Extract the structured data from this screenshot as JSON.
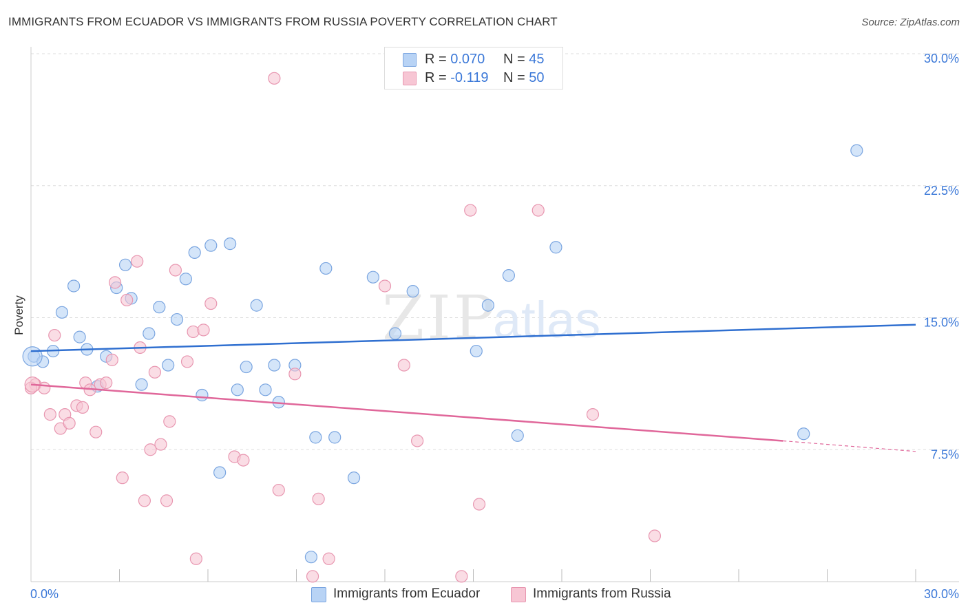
{
  "title": "IMMIGRANTS FROM ECUADOR VS IMMIGRANTS FROM RUSSIA POVERTY CORRELATION CHART",
  "source": "Source: ZipAtlas.com",
  "watermark": {
    "zip": "ZIP",
    "atlas": "atlas"
  },
  "legend_top": [
    {
      "r_label": "R = ",
      "r_value": "0.070",
      "n_label": "N = ",
      "n_value": "45",
      "fill": "#b8d3f5",
      "stroke": "#7aa5e0"
    },
    {
      "r_label": "R = ",
      "r_value": "-0.119",
      "n_label": "N = ",
      "n_value": "50",
      "fill": "#f7c6d4",
      "stroke": "#e896b0"
    }
  ],
  "legend_bottom": [
    {
      "label": "Immigrants from Ecuador",
      "fill": "#b8d3f5",
      "stroke": "#7aa5e0"
    },
    {
      "label": "Immigrants from Russia",
      "fill": "#f7c6d4",
      "stroke": "#e896b0"
    }
  ],
  "colors": {
    "ecuador_line": "#2f6fd0",
    "russia_line": "#e0679a",
    "axis_label": "#3b78d8",
    "grid": "#dddddd"
  },
  "chart_data": {
    "type": "scatter",
    "title": "IMMIGRANTS FROM ECUADOR VS IMMIGRANTS FROM RUSSIA POVERTY CORRELATION CHART",
    "xlabel": "",
    "ylabel": "Poverty",
    "xlim": [
      0,
      30
    ],
    "ylim": [
      0,
      30
    ],
    "x_tick_labels": [
      "0.0%",
      "30.0%"
    ],
    "y_ticks": [
      7.5,
      15.0,
      22.5,
      30.0
    ],
    "y_tick_labels": [
      "7.5%",
      "15.0%",
      "22.5%",
      "30.0%"
    ],
    "grid": true,
    "series": [
      {
        "name": "Immigrants from Ecuador",
        "color": "#7aa5e0",
        "fill": "#b8d3f5",
        "trend": {
          "x": [
            0,
            30
          ],
          "y": [
            13.1,
            14.6
          ]
        },
        "points": [
          [
            0.1,
            12.8
          ],
          [
            0.4,
            12.5
          ],
          [
            0.75,
            13.1
          ],
          [
            1.05,
            15.3
          ],
          [
            1.45,
            16.8
          ],
          [
            1.65,
            13.9
          ],
          [
            1.9,
            13.2
          ],
          [
            2.25,
            11.1
          ],
          [
            2.55,
            12.8
          ],
          [
            2.9,
            16.7
          ],
          [
            3.2,
            18.0
          ],
          [
            3.4,
            16.1
          ],
          [
            3.75,
            11.2
          ],
          [
            4.0,
            14.1
          ],
          [
            4.35,
            15.6
          ],
          [
            4.65,
            12.3
          ],
          [
            4.95,
            14.9
          ],
          [
            5.25,
            17.2
          ],
          [
            5.55,
            18.7
          ],
          [
            5.8,
            10.6
          ],
          [
            6.1,
            19.1
          ],
          [
            6.4,
            6.2
          ],
          [
            6.75,
            19.2
          ],
          [
            7.0,
            10.9
          ],
          [
            7.3,
            12.2
          ],
          [
            7.65,
            15.7
          ],
          [
            7.95,
            10.9
          ],
          [
            8.25,
            12.3
          ],
          [
            8.4,
            10.2
          ],
          [
            8.95,
            12.3
          ],
          [
            9.5,
            1.4
          ],
          [
            9.65,
            8.2
          ],
          [
            10.0,
            17.8
          ],
          [
            10.3,
            8.2
          ],
          [
            10.95,
            5.9
          ],
          [
            11.6,
            17.3
          ],
          [
            12.35,
            14.1
          ],
          [
            12.95,
            16.5
          ],
          [
            15.1,
            13.1
          ],
          [
            15.5,
            15.7
          ],
          [
            16.2,
            17.4
          ],
          [
            16.5,
            8.3
          ],
          [
            17.8,
            19.0
          ],
          [
            26.2,
            8.4
          ],
          [
            28.0,
            24.5
          ]
        ]
      },
      {
        "name": "Immigrants from Russia",
        "color": "#e896b0",
        "fill": "#f7c6d4",
        "trend": {
          "x": [
            0,
            25.5
          ],
          "y": [
            11.2,
            8.0
          ],
          "dashed_to": [
            30,
            7.4
          ]
        },
        "points": [
          [
            0.15,
            11.2
          ],
          [
            0.45,
            11.0
          ],
          [
            0.65,
            9.5
          ],
          [
            0.8,
            14.0
          ],
          [
            1.0,
            8.7
          ],
          [
            1.15,
            9.5
          ],
          [
            1.3,
            9.0
          ],
          [
            1.55,
            10.0
          ],
          [
            1.75,
            9.9
          ],
          [
            1.85,
            11.3
          ],
          [
            2.0,
            10.9
          ],
          [
            2.2,
            8.5
          ],
          [
            2.35,
            11.2
          ],
          [
            2.55,
            11.3
          ],
          [
            2.75,
            12.6
          ],
          [
            2.85,
            17.0
          ],
          [
            3.1,
            5.9
          ],
          [
            3.25,
            16.0
          ],
          [
            3.6,
            18.2
          ],
          [
            3.7,
            13.3
          ],
          [
            3.85,
            4.6
          ],
          [
            4.05,
            7.5
          ],
          [
            4.2,
            11.9
          ],
          [
            4.4,
            7.8
          ],
          [
            4.6,
            4.6
          ],
          [
            4.7,
            9.1
          ],
          [
            4.9,
            17.7
          ],
          [
            5.3,
            12.5
          ],
          [
            5.5,
            14.2
          ],
          [
            5.6,
            1.3
          ],
          [
            5.85,
            14.3
          ],
          [
            6.1,
            15.8
          ],
          [
            6.9,
            7.1
          ],
          [
            7.2,
            6.9
          ],
          [
            8.25,
            28.6
          ],
          [
            8.4,
            5.2
          ],
          [
            8.95,
            11.8
          ],
          [
            9.55,
            0.3
          ],
          [
            9.75,
            4.7
          ],
          [
            10.1,
            1.3
          ],
          [
            12.0,
            16.8
          ],
          [
            12.65,
            12.3
          ],
          [
            13.1,
            8.0
          ],
          [
            14.6,
            0.3
          ],
          [
            14.9,
            21.1
          ],
          [
            15.2,
            4.4
          ],
          [
            17.2,
            21.1
          ],
          [
            19.05,
            9.5
          ],
          [
            21.15,
            2.6
          ],
          [
            0.0,
            11.0
          ]
        ]
      }
    ]
  }
}
